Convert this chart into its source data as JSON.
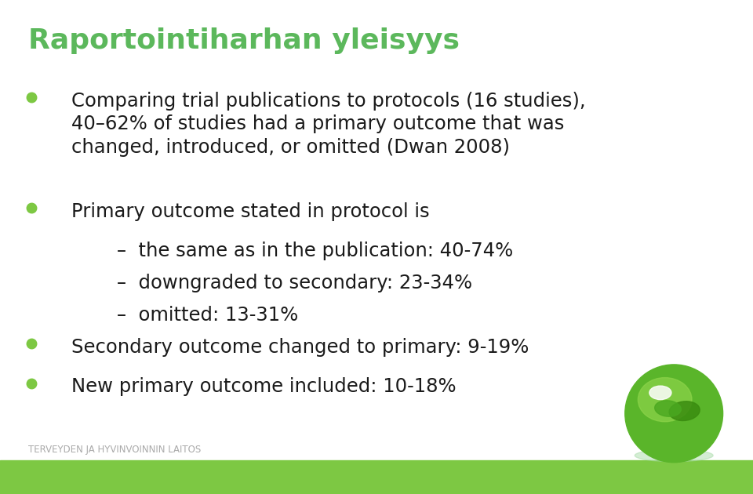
{
  "title": "Raportointiharhan yleisyys",
  "title_color": "#5cb85c",
  "background_color": "#ffffff",
  "footer_bar_color": "#7dc843",
  "footer_text": "TERVEYDEN JA HYVINVOINNIN LAITOS",
  "bullet_color": "#7dc843",
  "text_color": "#1a1a1a",
  "bullet_points": [
    {
      "level": 0,
      "text": "Comparing trial publications to protocols (16 studies),\n40–62% of studies had a primary outcome that was\nchanged, introduced, or omitted (Dwan 2008)"
    },
    {
      "level": 0,
      "text": "Primary outcome stated in protocol is"
    },
    {
      "level": 1,
      "text": "–  the same as in the publication: 40-74%"
    },
    {
      "level": 1,
      "text": "–  downgraded to secondary: 23-34%"
    },
    {
      "level": 1,
      "text": "–  omitted: 13-31%"
    },
    {
      "level": 0,
      "text": "Secondary outcome changed to primary: 9-19%"
    },
    {
      "level": 0,
      "text": "New primary outcome included: 10-18%"
    }
  ],
  "title_fontsize": 26,
  "body_fontsize": 17.5,
  "footer_fontsize": 8.5,
  "bullet_markersize": 9
}
